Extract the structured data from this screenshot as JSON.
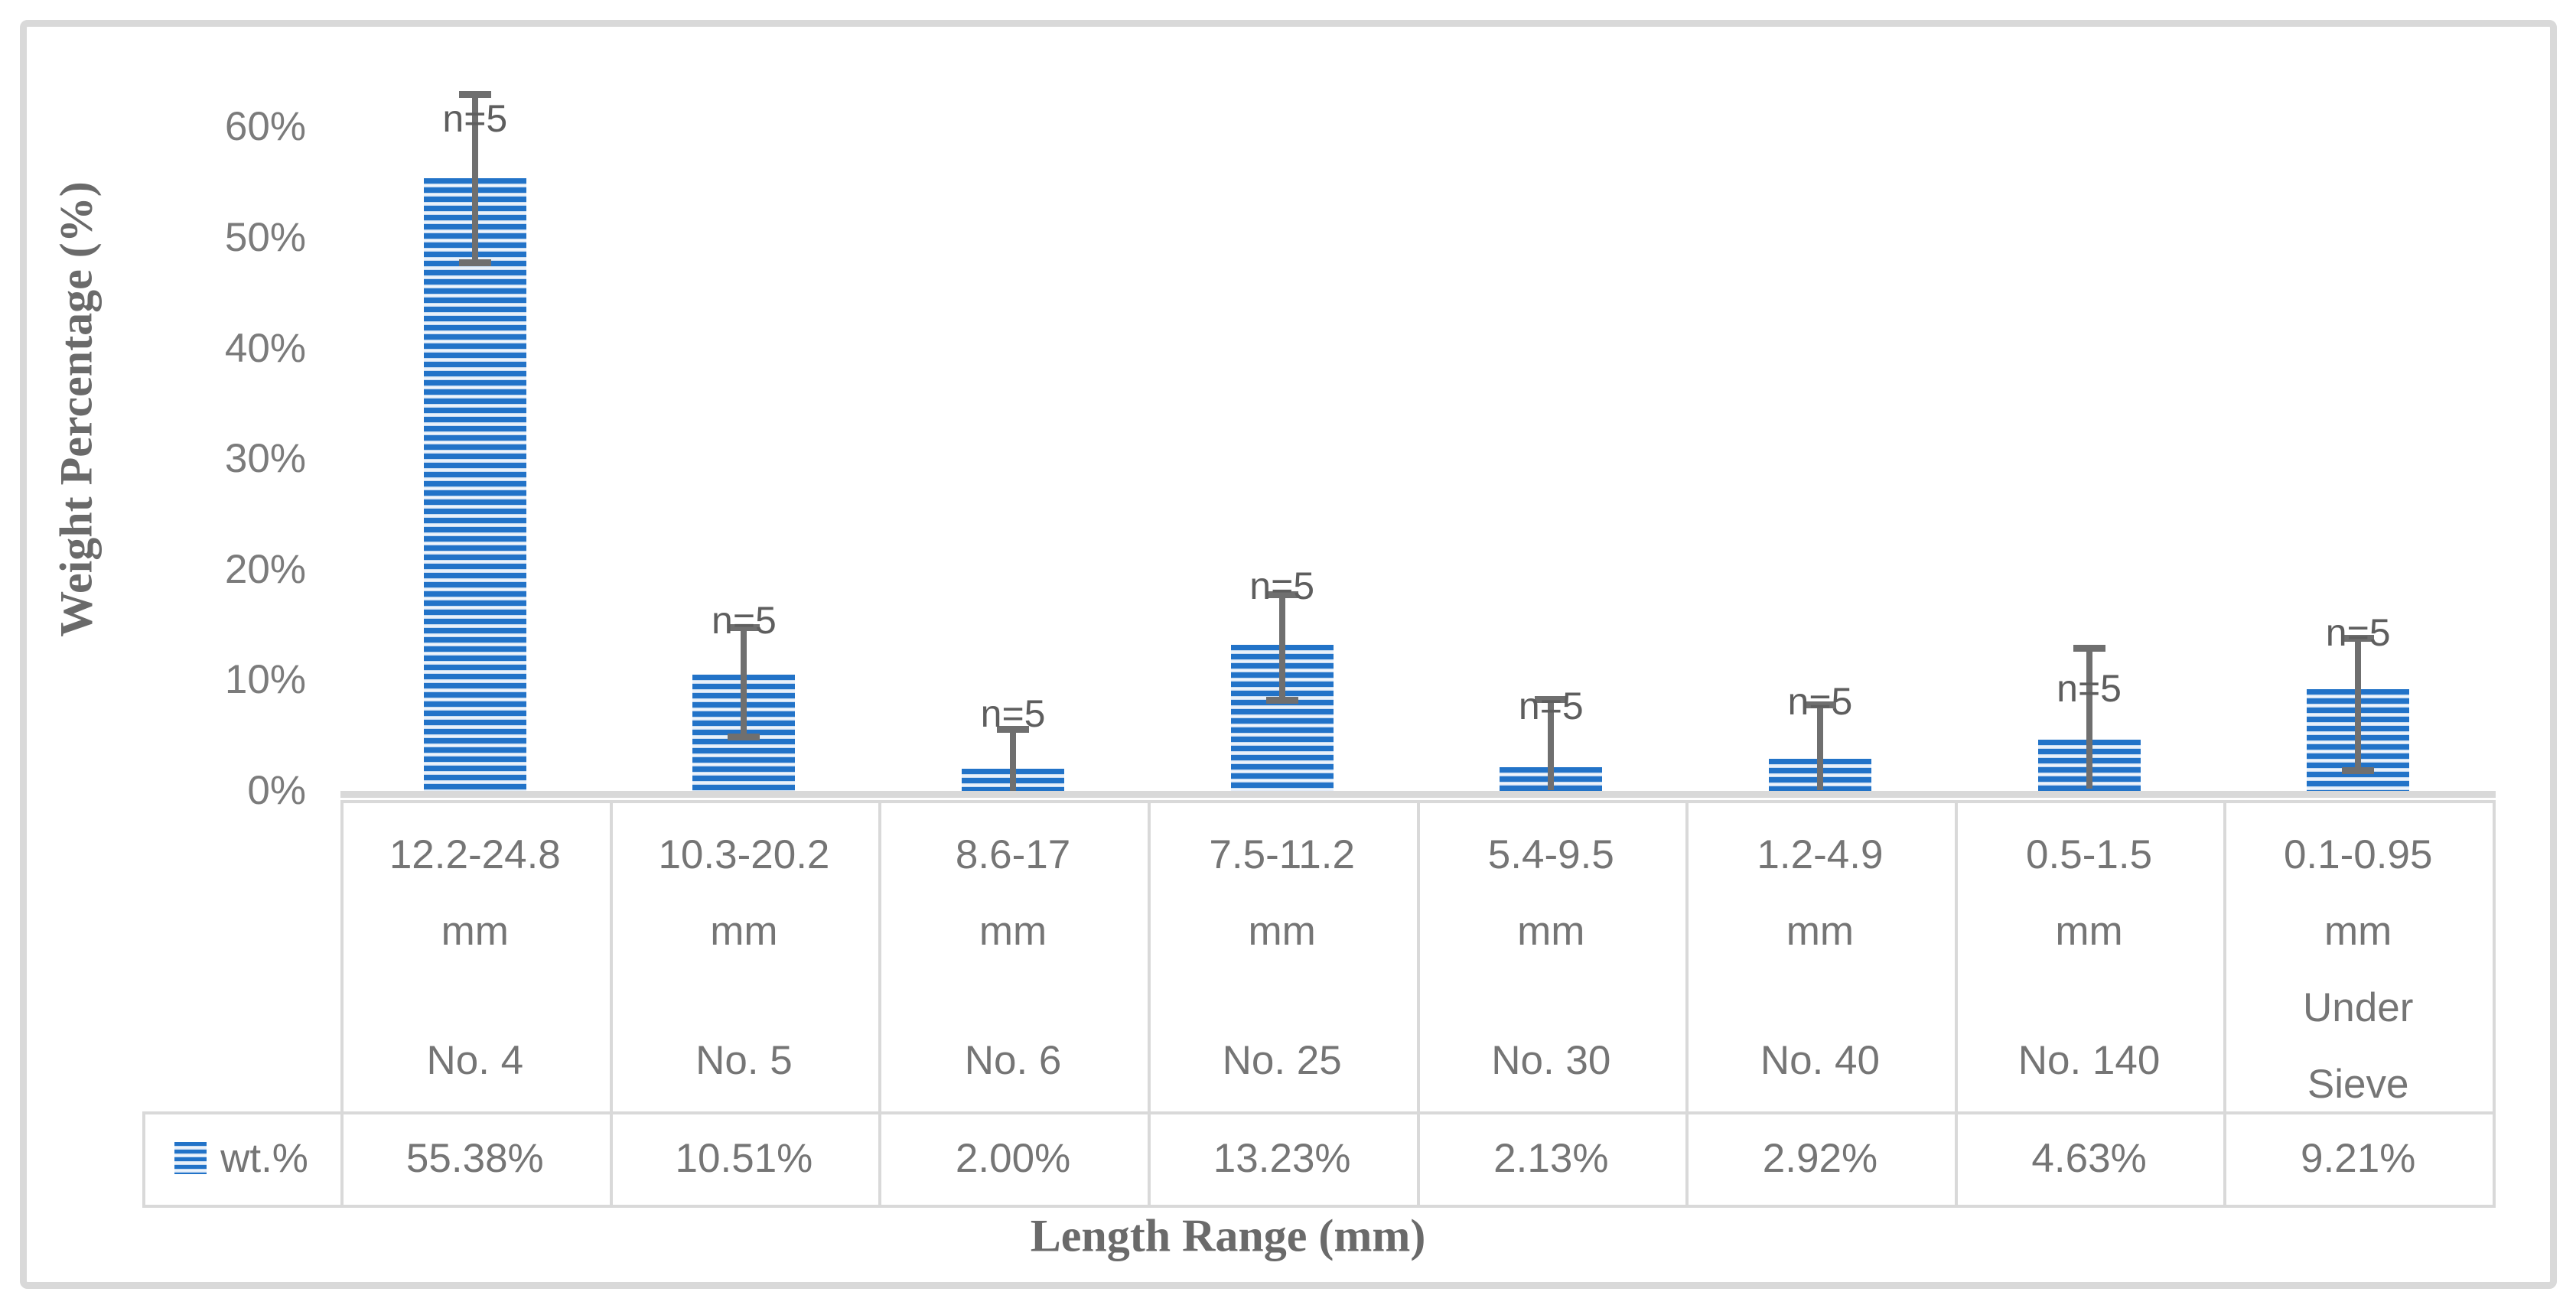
{
  "figure": {
    "y_axis_title": "Weight Percentage (%)",
    "x_axis_title": "Length Range (mm)",
    "legend_label": "wt.%",
    "colors": {
      "bar_accent": "#2273C8",
      "border_gray": "#D9D9D9",
      "text_gray": "#757575",
      "error_bar_gray": "#6F6F6F"
    }
  },
  "chart_data": {
    "type": "bar",
    "title": "",
    "xlabel": "Length Range (mm)",
    "ylabel": "Weight Percentage (%)",
    "ylim": [
      0,
      65
    ],
    "grid": false,
    "legend_position": "bottom-left-table-row",
    "bar_pattern": "horizontal-stripes",
    "y_ticks": [
      {
        "label": "0%",
        "value": 0
      },
      {
        "label": "10%",
        "value": 10
      },
      {
        "label": "20%",
        "value": 20
      },
      {
        "label": "30%",
        "value": 30
      },
      {
        "label": "40%",
        "value": 40
      },
      {
        "label": "50%",
        "value": 50
      },
      {
        "label": "60%",
        "value": 60
      }
    ],
    "categories": [
      {
        "range": "12.2-24.8",
        "unit": "mm",
        "sieve": "No. 4"
      },
      {
        "range": "10.3-20.2",
        "unit": "mm",
        "sieve": "No. 5"
      },
      {
        "range": "8.6-17",
        "unit": "mm",
        "sieve": "No. 6"
      },
      {
        "range": "7.5-11.2",
        "unit": "mm",
        "sieve": "No. 25"
      },
      {
        "range": "5.4-9.5",
        "unit": "mm",
        "sieve": "No. 30"
      },
      {
        "range": "1.2-4.9",
        "unit": "mm",
        "sieve": "No. 40"
      },
      {
        "range": "0.5-1.5",
        "unit": "mm",
        "sieve": "No. 140"
      },
      {
        "range": "0.1-0.95",
        "unit": "mm",
        "sieve": "Under\nSieve"
      }
    ],
    "series": [
      {
        "name": "wt.%",
        "values": [
          55.38,
          10.51,
          2.0,
          13.23,
          2.13,
          2.92,
          4.63,
          9.21
        ],
        "value_labels": [
          "55.38%",
          "10.51%",
          "2.00%",
          "13.23%",
          "2.13%",
          "2.92%",
          "4.63%",
          "9.21%"
        ]
      }
    ],
    "error_bars": {
      "top": [
        63.0,
        14.8,
        5.6,
        17.8,
        8.3,
        7.8,
        12.9,
        13.8
      ],
      "bottom": [
        47.8,
        4.9,
        0.0,
        8.2,
        0.1,
        0.1,
        0.2,
        1.9
      ]
    },
    "sample_labels": {
      "text": "n=5",
      "y_centers": [
        60.8,
        15.4,
        7.0,
        18.5,
        7.7,
        8.1,
        9.3,
        14.3
      ]
    }
  }
}
